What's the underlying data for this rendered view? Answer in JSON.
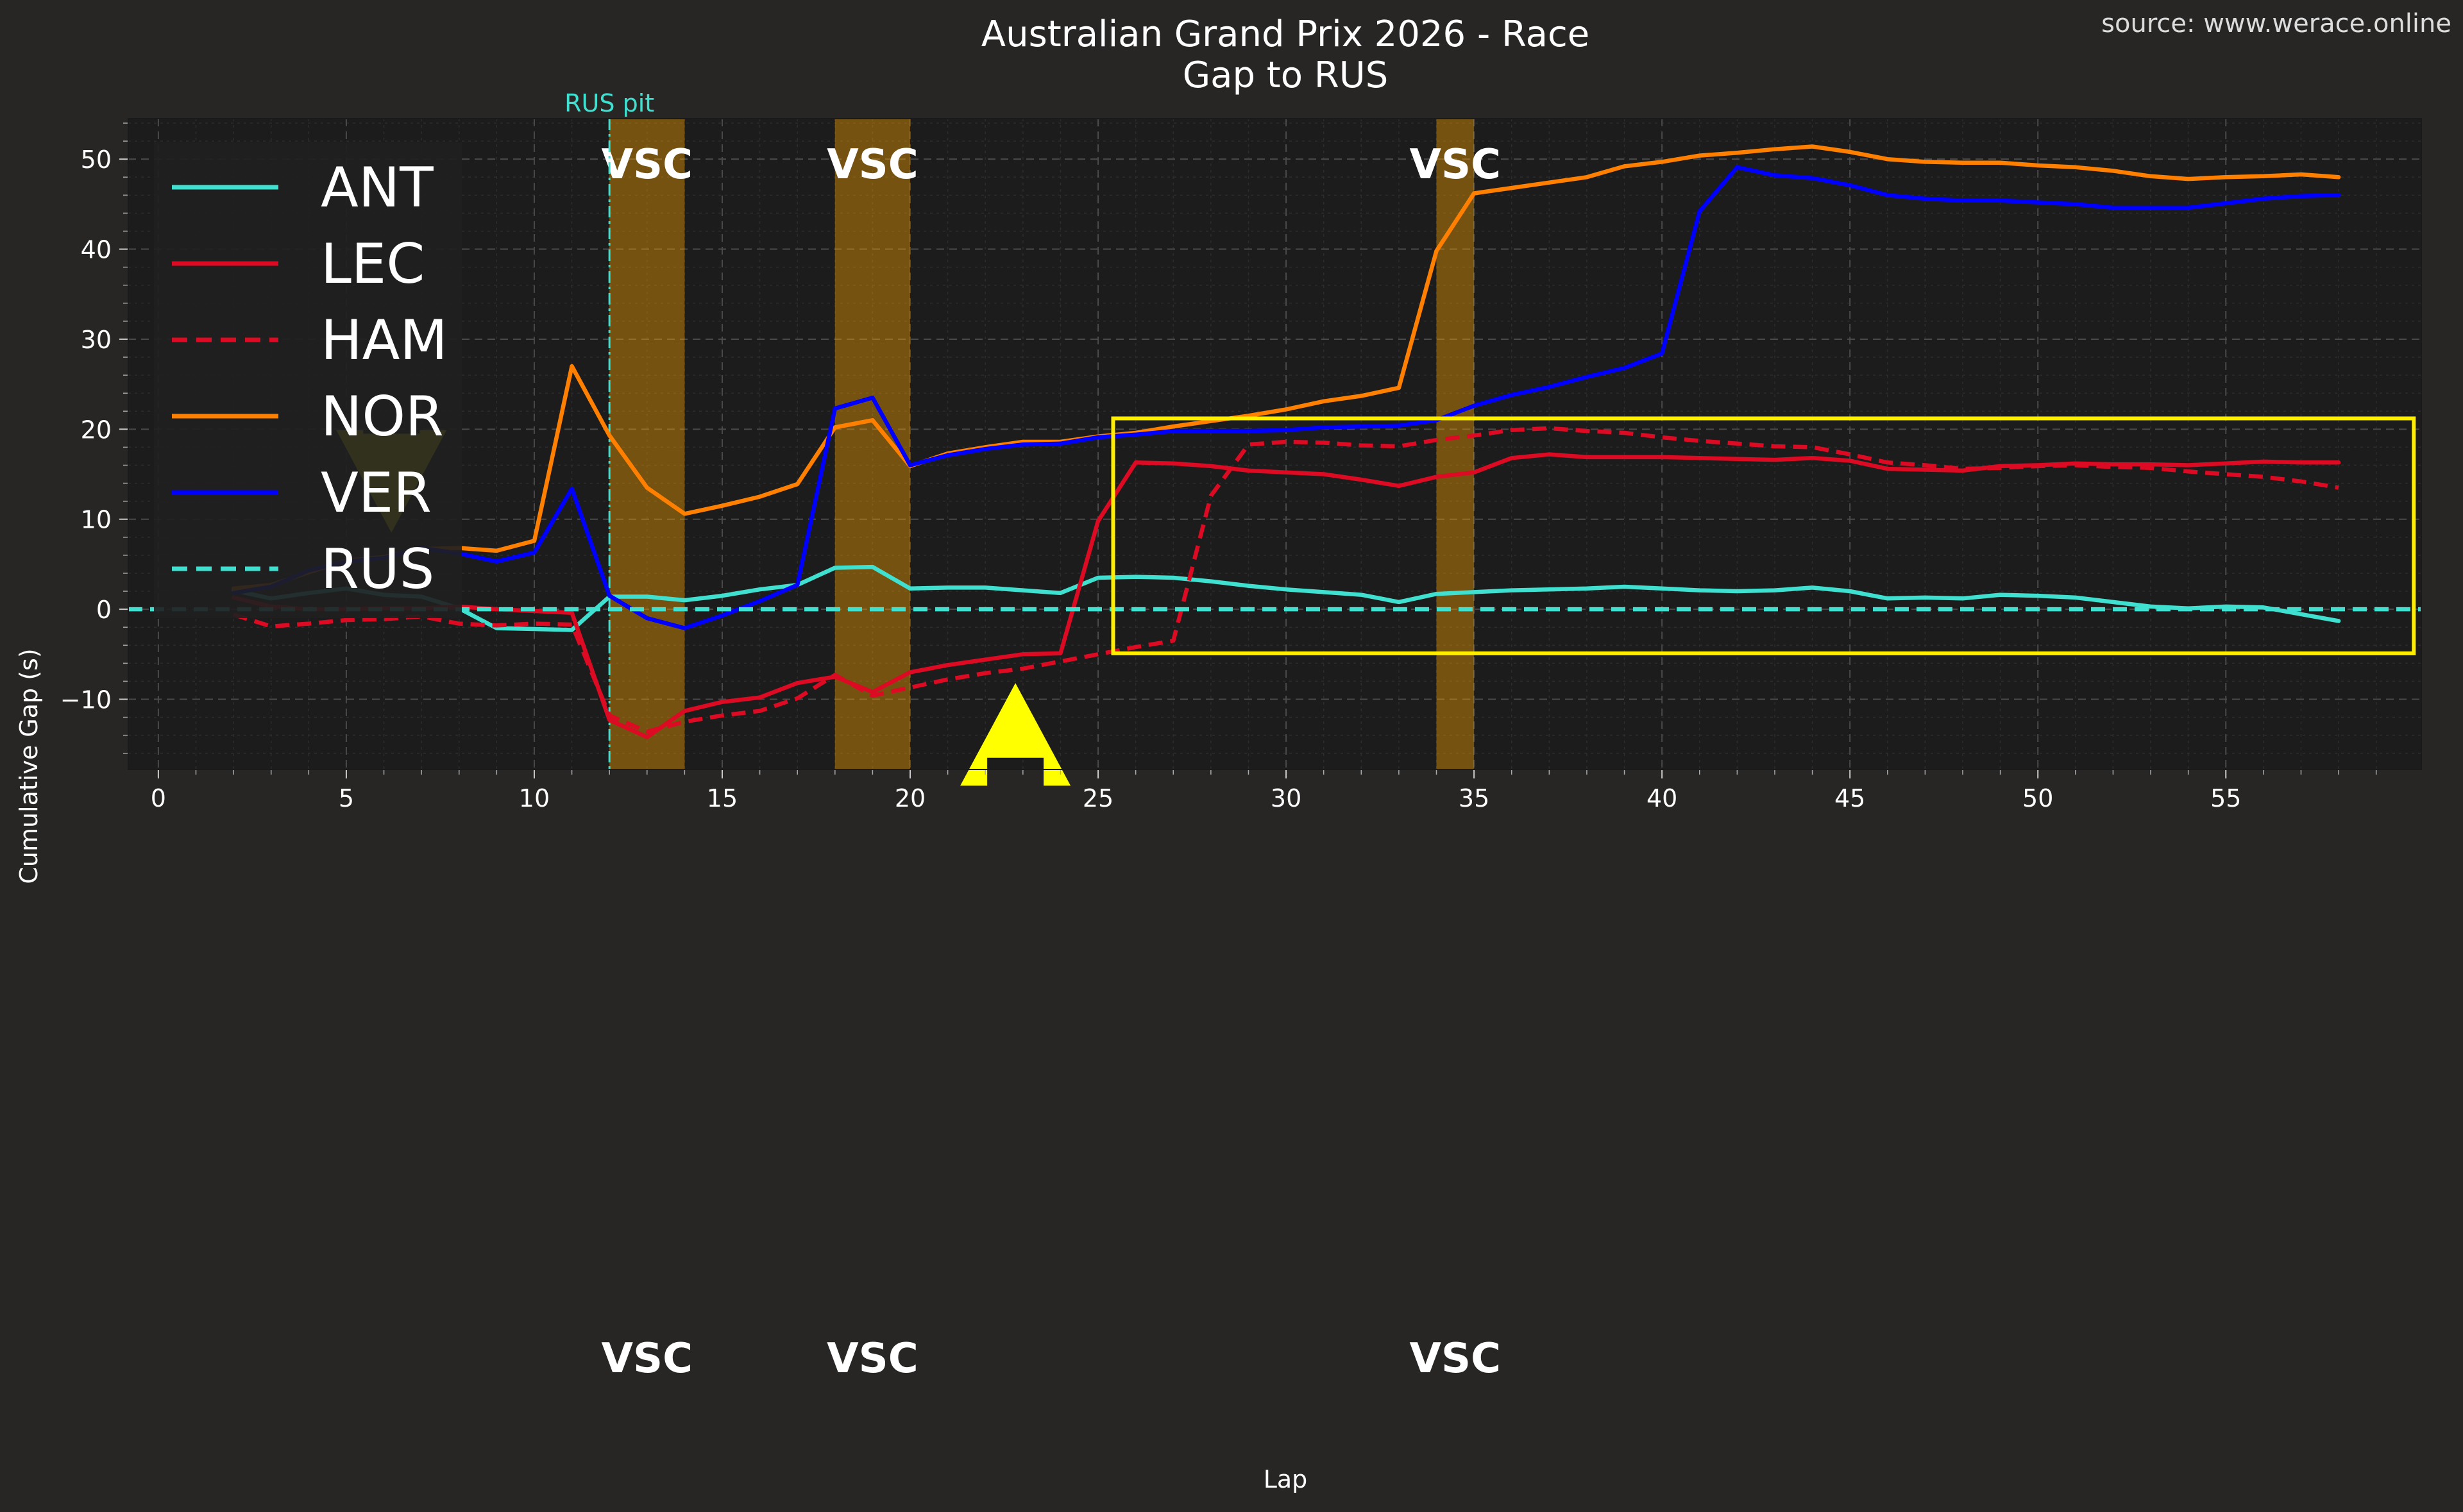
{
  "chart_data": {
    "type": "line",
    "title": "Australian Grand Prix 2026 - Race",
    "subtitle": "Gap to RUS",
    "source": "source: www.werace.online",
    "xlabel": "Lap",
    "ylabel": "Cumulative Gap (s)",
    "xlim": [
      -0.8,
      60.2
    ],
    "ylim": [
      -17.8,
      54.5
    ],
    "x_ticks": [
      0,
      5,
      10,
      15,
      20,
      25,
      30,
      35,
      40,
      45,
      50,
      55
    ],
    "y_ticks": [
      -10,
      0,
      10,
      20,
      30,
      40,
      50
    ],
    "grid": true,
    "legend_position": "top-left",
    "annotations": {
      "pit_label": "RUS pit",
      "pit_lap": 12,
      "vsc_label": "VSC",
      "vsc_periods": [
        [
          12,
          14
        ],
        [
          18,
          20
        ],
        [
          34,
          35
        ]
      ],
      "highlight_box": {
        "x": [
          25.4,
          60
        ],
        "y": [
          -4.9,
          21.2
        ]
      },
      "arrows": [
        {
          "direction": "down",
          "lap": 6.2,
          "from": 19.5,
          "to": 8.5
        },
        {
          "direction": "up",
          "lap": 22.8,
          "from": -16.5,
          "to": -8.2
        }
      ]
    },
    "series": [
      {
        "name": "ANT",
        "color": "#40e0d0",
        "dash": "solid",
        "x": [
          2,
          3,
          4,
          5,
          6,
          7,
          8,
          9,
          10,
          11,
          12,
          13,
          14,
          15,
          16,
          17,
          18,
          19,
          20,
          21,
          22,
          23,
          24,
          25,
          26,
          27,
          28,
          29,
          30,
          31,
          32,
          33,
          34,
          35,
          36,
          37,
          38,
          39,
          40,
          41,
          42,
          43,
          44,
          45,
          46,
          47,
          48,
          49,
          50,
          51,
          52,
          53,
          54,
          55,
          56,
          58
        ],
        "y": [
          2.1,
          1.2,
          1.8,
          2.3,
          1.6,
          1.4,
          0.1,
          -2.1,
          -2.2,
          -2.3,
          1.4,
          1.4,
          1.0,
          1.5,
          2.2,
          2.7,
          4.6,
          4.7,
          2.3,
          2.4,
          2.4,
          2.1,
          1.8,
          3.5,
          3.6,
          3.5,
          3.1,
          2.6,
          2.2,
          1.9,
          1.6,
          0.8,
          1.7,
          1.9,
          2.1,
          2.2,
          2.3,
          2.5,
          2.3,
          2.1,
          2.0,
          2.1,
          2.4,
          2.0,
          1.2,
          1.3,
          1.2,
          1.6,
          1.5,
          1.3,
          0.8,
          0.3,
          0.1,
          0.3,
          0.2,
          -1.3
        ]
      },
      {
        "name": "LEC",
        "color": "#dc0a22",
        "dash": "solid",
        "x": [
          2,
          3,
          4,
          5,
          6,
          7,
          8,
          9,
          10,
          11,
          12,
          13,
          14,
          15,
          16,
          17,
          18,
          19,
          20,
          21,
          22,
          23,
          24,
          25,
          26,
          27,
          28,
          29,
          30,
          31,
          32,
          33,
          34,
          35,
          36,
          37,
          38,
          39,
          40,
          41,
          42,
          43,
          44,
          45,
          46,
          47,
          48,
          49,
          50,
          51,
          52,
          53,
          54,
          55,
          56,
          57,
          58
        ],
        "y": [
          1.3,
          0.3,
          0.0,
          0.0,
          0.1,
          0.1,
          0.3,
          0.0,
          -0.2,
          -0.4,
          -12.3,
          -14.2,
          -11.3,
          -10.3,
          -9.8,
          -8.2,
          -7.5,
          -9.2,
          -7.0,
          -6.2,
          -5.6,
          -5.0,
          -4.9,
          9.8,
          16.3,
          16.2,
          15.9,
          15.4,
          15.2,
          15.0,
          14.4,
          13.7,
          14.7,
          15.2,
          16.8,
          17.2,
          16.9,
          16.9,
          16.9,
          16.8,
          16.7,
          16.6,
          16.8,
          16.5,
          15.6,
          15.5,
          15.4,
          15.9,
          16.0,
          16.2,
          16.1,
          16.1,
          16.0,
          16.2,
          16.4,
          16.3,
          16.3
        ]
      },
      {
        "name": "HAM",
        "color": "#dc0a22",
        "dash": "dashed",
        "x": [
          2,
          3,
          4,
          5,
          6,
          7,
          8,
          9,
          10,
          11,
          12,
          13,
          14,
          15,
          16,
          17,
          18,
          19,
          20,
          21,
          22,
          23,
          24,
          25,
          26,
          27,
          28,
          29,
          30,
          31,
          32,
          33,
          34,
          35,
          36,
          37,
          38,
          39,
          40,
          41,
          42,
          43,
          44,
          45,
          46,
          47,
          48,
          49,
          50,
          51,
          52,
          53,
          54,
          55,
          56,
          57,
          58
        ],
        "y": [
          -0.6,
          -1.9,
          -1.6,
          -1.2,
          -1.1,
          -0.8,
          -1.6,
          -1.8,
          -1.6,
          -1.7,
          -11.8,
          -13.6,
          -12.5,
          -11.8,
          -11.3,
          -9.9,
          -7.3,
          -9.6,
          -8.7,
          -7.8,
          -7.1,
          -6.6,
          -5.8,
          -5.0,
          -4.2,
          -3.5,
          12.6,
          18.3,
          18.6,
          18.5,
          18.2,
          18.1,
          18.8,
          19.3,
          19.9,
          20.1,
          19.8,
          19.6,
          19.1,
          18.7,
          18.4,
          18.1,
          18.0,
          17.2,
          16.3,
          16.0,
          15.6,
          15.7,
          15.9,
          16.0,
          15.8,
          15.7,
          15.3,
          15.0,
          14.7,
          14.2,
          13.5
        ]
      },
      {
        "name": "NOR",
        "color": "#ff8000",
        "dash": "solid",
        "x": [
          2,
          3,
          4,
          5,
          6,
          7,
          8,
          9,
          10,
          11,
          12,
          13,
          14,
          15,
          16,
          17,
          18,
          19,
          20,
          21,
          22,
          23,
          24,
          25,
          26,
          27,
          28,
          29,
          30,
          31,
          32,
          33,
          34,
          35,
          36,
          37,
          38,
          39,
          40,
          41,
          42,
          43,
          44,
          45,
          46,
          47,
          48,
          49,
          50,
          51,
          52,
          53,
          54,
          55,
          56,
          57,
          58
        ],
        "y": [
          2.3,
          2.7,
          4.1,
          5.4,
          5.8,
          6.7,
          6.8,
          6.5,
          7.6,
          27.0,
          19.3,
          13.5,
          10.6,
          11.5,
          12.5,
          13.9,
          20.2,
          21.0,
          15.9,
          17.3,
          18.0,
          18.6,
          18.6,
          19.2,
          19.6,
          20.3,
          20.9,
          21.5,
          22.2,
          23.1,
          23.7,
          24.6,
          39.8,
          46.2,
          46.8,
          47.4,
          48.0,
          49.2,
          49.7,
          50.4,
          50.7,
          51.1,
          51.4,
          50.8,
          50.0,
          49.7,
          49.6,
          49.6,
          49.3,
          49.1,
          48.7,
          48.1,
          47.8,
          48.0,
          48.1,
          48.3,
          48.0
        ]
      },
      {
        "name": "VER",
        "color": "#0000ff",
        "dash": "solid",
        "x": [
          2,
          3,
          4,
          5,
          6,
          7,
          8,
          9,
          10,
          11,
          12,
          13,
          14,
          15,
          16,
          17,
          18,
          19,
          20,
          21,
          22,
          23,
          24,
          25,
          26,
          27,
          28,
          29,
          30,
          31,
          32,
          33,
          34,
          35,
          36,
          37,
          38,
          39,
          40,
          41,
          42,
          43,
          44,
          45,
          46,
          47,
          48,
          49,
          50,
          51,
          52,
          53,
          54,
          55,
          56,
          57,
          58
        ],
        "y": [
          1.8,
          2.5,
          4.3,
          5.3,
          5.7,
          6.8,
          6.2,
          5.3,
          6.3,
          13.4,
          1.5,
          -1.0,
          -2.1,
          -0.7,
          0.9,
          2.7,
          22.3,
          23.5,
          16.0,
          17.1,
          17.8,
          18.3,
          18.4,
          19.1,
          19.4,
          19.8,
          19.8,
          19.8,
          19.9,
          20.2,
          20.3,
          20.4,
          21.0,
          22.6,
          23.8,
          24.7,
          25.8,
          26.8,
          28.4,
          44.2,
          49.1,
          48.2,
          47.9,
          47.1,
          46.0,
          45.6,
          45.4,
          45.4,
          45.2,
          45.0,
          44.6,
          44.6,
          44.6,
          45.1,
          45.6,
          45.9,
          46.0
        ]
      },
      {
        "name": "RUS",
        "color": "#40e0d0",
        "dash": "dashed",
        "x": [
          -0.8,
          60.2
        ],
        "y": [
          0,
          0
        ]
      }
    ]
  }
}
